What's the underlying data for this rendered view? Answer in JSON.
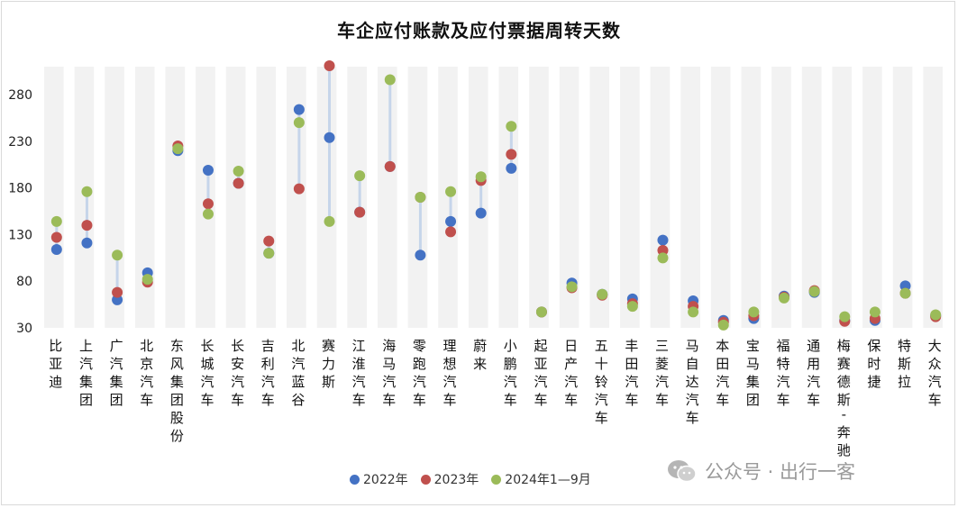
{
  "chart_data": {
    "type": "dot-range",
    "title": "车企应付账款及应付票据周转天数",
    "ylim": [
      30,
      310
    ],
    "yticks": [
      30,
      80,
      130,
      180,
      230,
      280
    ],
    "categories": [
      "比亚迪",
      "上汽集团",
      "广汽集团",
      "北京汽车",
      "东风集团股份",
      "长城汽车",
      "长安汽车",
      "吉利汽车",
      "北汽蓝谷",
      "赛力斯",
      "江淮汽车",
      "海马汽车",
      "零跑汽车",
      "理想汽车",
      "蔚来",
      "小鹏汽车",
      "起亚汽车",
      "日产汽车",
      "五十铃汽车",
      "丰田汽车",
      "三菱汽车",
      "马自达汽车",
      "本田汽车",
      "宝马集团",
      "福特汽车",
      "通用汽车",
      "梅赛德斯-奔驰",
      "保时捷",
      "特斯拉",
      "大众汽车"
    ],
    "series": [
      {
        "name": "2022年",
        "color": "#4472c4",
        "values": [
          114,
          121,
          60,
          89,
          220,
          199,
          185,
          110,
          264,
          234,
          154,
          203,
          108,
          144,
          153,
          201,
          47,
          78,
          66,
          61,
          124,
          59,
          38,
          40,
          64,
          68,
          38,
          38,
          75,
          43
        ]
      },
      {
        "name": "2023年",
        "color": "#c0504d",
        "values": [
          127,
          140,
          68,
          79,
          225,
          163,
          185,
          123,
          179,
          311,
          154,
          203,
          170,
          133,
          188,
          216,
          47,
          73,
          65,
          56,
          113,
          53,
          36,
          43,
          63,
          70,
          37,
          40,
          67,
          42
        ]
      },
      {
        "name": "2024年1—9月",
        "color": "#9bbb59",
        "values": [
          144,
          176,
          108,
          82,
          222,
          152,
          198,
          110,
          250,
          144,
          193,
          296,
          170,
          176,
          192,
          246,
          47,
          74,
          66,
          53,
          105,
          47,
          33,
          47,
          62,
          69,
          42,
          47,
          67,
          44
        ]
      }
    ]
  },
  "legend": {
    "items": [
      {
        "label": "2022年",
        "color": "#4472c4"
      },
      {
        "label": "2023年",
        "color": "#c0504d"
      },
      {
        "label": "2024年1—9月",
        "color": "#9bbb59"
      }
    ]
  },
  "watermark": {
    "text": "公众号 · 出行一客"
  }
}
